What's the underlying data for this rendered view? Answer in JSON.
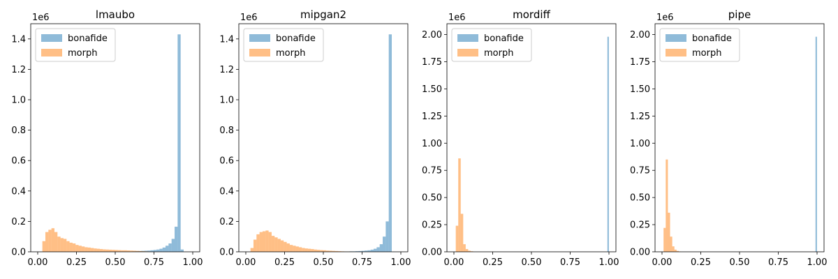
{
  "chart_data": [
    {
      "type": "bar",
      "title": "lmaubo",
      "xlabel": "",
      "ylabel": "",
      "xlim": [
        -0.045,
        1.045
      ],
      "ylim": [
        0,
        1500000
      ],
      "y_offset_label": "1e6",
      "xticks": [
        0.0,
        0.25,
        0.5,
        0.75,
        1.0
      ],
      "xtick_labels": [
        "0.00",
        "0.25",
        "0.50",
        "0.75",
        "1.00"
      ],
      "yticks": [
        0,
        200000,
        400000,
        600000,
        800000,
        1000000,
        1200000,
        1400000
      ],
      "ytick_labels": [
        "0.0",
        "0.2",
        "0.4",
        "0.6",
        "0.8",
        "1.0",
        "1.2",
        "1.4"
      ],
      "legend": {
        "position": "top-left",
        "entries": [
          "bonafide",
          "morph"
        ]
      },
      "series": [
        {
          "name": "bonafide",
          "color": "#1f77b4",
          "bin_width": 0.0195,
          "x_start": 0.61,
          "values": [
            3000,
            4000,
            5000,
            6000,
            7000,
            8000,
            10000,
            12000,
            15000,
            20000,
            28000,
            40000,
            55000,
            85000,
            165000,
            1430000,
            15000
          ]
        },
        {
          "name": "morph",
          "color": "#ff7f0e",
          "bin_width": 0.0195,
          "x_start": 0.03,
          "values": [
            70000,
            130000,
            145000,
            155000,
            130000,
            100000,
            90000,
            85000,
            70000,
            60000,
            55000,
            45000,
            40000,
            35000,
            30000,
            28000,
            25000,
            22000,
            20000,
            18000,
            16000,
            15000,
            14000,
            13000,
            12000,
            11000,
            10000,
            10000,
            9000,
            8000,
            7000,
            6000,
            5000,
            4000,
            3000,
            2000
          ]
        }
      ]
    },
    {
      "type": "bar",
      "title": "mipgan2",
      "xlabel": "",
      "ylabel": "",
      "xlim": [
        -0.045,
        1.045
      ],
      "ylim": [
        0,
        1500000
      ],
      "y_offset_label": "1e6",
      "xticks": [
        0.0,
        0.25,
        0.5,
        0.75,
        1.0
      ],
      "xtick_labels": [
        "0.00",
        "0.25",
        "0.50",
        "0.75",
        "1.00"
      ],
      "yticks": [
        0,
        200000,
        400000,
        600000,
        800000,
        1000000,
        1200000,
        1400000
      ],
      "ytick_labels": [
        "0.0",
        "0.2",
        "0.4",
        "0.6",
        "0.8",
        "1.0",
        "1.2",
        "1.4"
      ],
      "legend": {
        "position": "top-left",
        "entries": [
          "bonafide",
          "morph"
        ]
      },
      "series": [
        {
          "name": "bonafide",
          "color": "#1f77b4",
          "bin_width": 0.0195,
          "x_start": 0.61,
          "values": [
            1000,
            2000,
            2000,
            3000,
            3000,
            4000,
            5000,
            6000,
            8000,
            10000,
            14000,
            20000,
            30000,
            50000,
            100000,
            200000,
            1430000
          ]
        },
        {
          "name": "morph",
          "color": "#ff7f0e",
          "bin_width": 0.0195,
          "x_start": 0.03,
          "values": [
            25000,
            80000,
            115000,
            130000,
            135000,
            140000,
            130000,
            105000,
            95000,
            85000,
            75000,
            65000,
            55000,
            45000,
            40000,
            35000,
            30000,
            25000,
            22000,
            20000,
            18000,
            15000,
            13000,
            11000,
            10000,
            8000,
            7000,
            6000,
            5000,
            4000,
            3000,
            2000,
            1500,
            1000
          ]
        }
      ]
    },
    {
      "type": "bar",
      "title": "mordiff",
      "xlabel": "",
      "ylabel": "",
      "xlim": [
        -0.045,
        1.045
      ],
      "ylim": [
        0,
        2100000
      ],
      "y_offset_label": "1e6",
      "xticks": [
        0.0,
        0.25,
        0.5,
        0.75,
        1.0
      ],
      "xtick_labels": [
        "0.00",
        "0.25",
        "0.50",
        "0.75",
        "1.00"
      ],
      "yticks": [
        0,
        250000,
        500000,
        750000,
        1000000,
        1250000,
        1500000,
        1750000,
        2000000
      ],
      "ytick_labels": [
        "0.00",
        "0.25",
        "0.50",
        "0.75",
        "1.00",
        "1.25",
        "1.50",
        "1.75",
        "2.00"
      ],
      "legend": {
        "position": "top-left",
        "entries": [
          "bonafide",
          "morph"
        ]
      },
      "series": [
        {
          "name": "bonafide",
          "color": "#1f77b4",
          "bin_width": 0.0095,
          "x_start": 0.99,
          "values": [
            1980000
          ]
        },
        {
          "name": "morph",
          "color": "#ff7f0e",
          "bin_width": 0.016,
          "x_start": 0.012,
          "values": [
            240000,
            860000,
            350000,
            70000,
            25000,
            10000,
            5000
          ]
        }
      ]
    },
    {
      "type": "bar",
      "title": "pipe",
      "xlabel": "",
      "ylabel": "",
      "xlim": [
        -0.045,
        1.045
      ],
      "ylim": [
        0,
        2100000
      ],
      "y_offset_label": "1e6",
      "xticks": [
        0.0,
        0.25,
        0.5,
        0.75,
        1.0
      ],
      "xtick_labels": [
        "0.00",
        "0.25",
        "0.50",
        "0.75",
        "1.00"
      ],
      "yticks": [
        0,
        250000,
        500000,
        750000,
        1000000,
        1250000,
        1500000,
        1750000,
        2000000
      ],
      "ytick_labels": [
        "0.00",
        "0.25",
        "0.50",
        "0.75",
        "1.00",
        "1.25",
        "1.50",
        "1.75",
        "2.00"
      ],
      "legend": {
        "position": "top-left",
        "entries": [
          "bonafide",
          "morph"
        ]
      },
      "series": [
        {
          "name": "bonafide",
          "color": "#1f77b4",
          "bin_width": 0.0095,
          "x_start": 0.99,
          "values": [
            1980000
          ]
        },
        {
          "name": "morph",
          "color": "#ff7f0e",
          "bin_width": 0.014,
          "x_start": 0.01,
          "values": [
            220000,
            850000,
            360000,
            140000,
            50000,
            20000,
            8000,
            3000
          ]
        }
      ]
    }
  ]
}
